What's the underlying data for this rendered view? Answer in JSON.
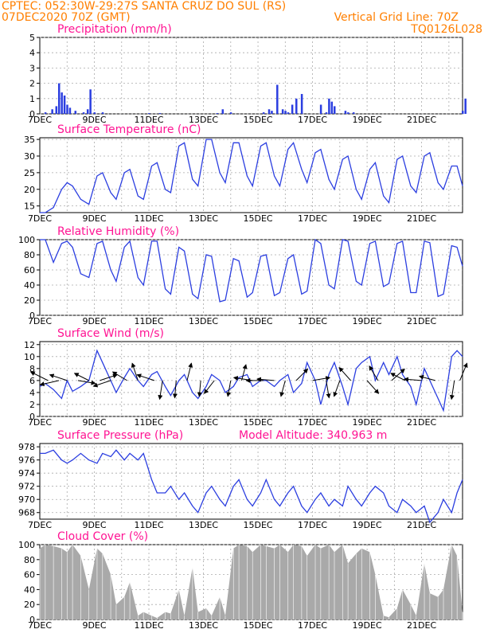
{
  "header": {
    "line1": "CPTEC:   052:30W-29:27S  SANTA CRUZ DO SUL (RS)",
    "line2_left": "07DEC2020 70Z (GMT)",
    "line2_right": "Vertical Grid Line: 70Z",
    "line3_right": "TQ0126L028",
    "model_altitude": "Model Altitude: 340.963 m"
  },
  "colors": {
    "header": "#ff7f00",
    "title": "#ff1493",
    "series": "#2b3ee0",
    "cloud": "#a9a9a9",
    "arrow": "#000000"
  },
  "date_ticks": [
    "7DEC",
    "9DEC",
    "11DEC",
    "13DEC",
    "15DEC",
    "17DEC",
    "19DEC",
    "21DEC"
  ],
  "chart_data": [
    {
      "id": "precip",
      "type": "bar",
      "title": "Precipitation (mm/h)",
      "ylim": [
        0,
        5
      ],
      "yticks": [
        0,
        1,
        2,
        3,
        4,
        5
      ],
      "grid": true,
      "x_unit": "days since 7DEC 00Z",
      "x": [
        0.2,
        0.45,
        0.6,
        0.7,
        0.8,
        0.9,
        1.0,
        1.1,
        1.3,
        1.6,
        1.75,
        1.85,
        2.0,
        2.3,
        4.0,
        4.4,
        6.5,
        6.7,
        7.0,
        8.2,
        8.4,
        8.5,
        8.7,
        8.9,
        9.0,
        9.1,
        9.25,
        9.4,
        9.6,
        10.3,
        10.5,
        10.6,
        10.7,
        10.8,
        11.2,
        11.3,
        11.5,
        15.5,
        15.6
      ],
      "values": [
        0.1,
        0.3,
        0.5,
        2.0,
        1.4,
        1.2,
        0.6,
        0.4,
        0.2,
        0.1,
        0.3,
        1.6,
        0.1,
        0.1,
        0.05,
        0.05,
        0.05,
        0.3,
        0.1,
        0.1,
        0.3,
        0.2,
        1.9,
        0.3,
        0.2,
        0.1,
        0.6,
        1.0,
        1.3,
        0.6,
        0.1,
        1.0,
        0.8,
        0.5,
        0.2,
        0.1,
        0.1,
        0.2,
        1.0
      ]
    },
    {
      "id": "temp",
      "type": "line",
      "title": "Surface Temperature (nC)",
      "ylim": [
        13,
        35.5
      ],
      "yticks": [
        15,
        20,
        25,
        30,
        35
      ],
      "grid": true,
      "x": [
        0,
        0.2,
        0.5,
        0.8,
        1.0,
        1.2,
        1.5,
        1.8,
        2.1,
        2.3,
        2.6,
        2.8,
        3.1,
        3.3,
        3.6,
        3.8,
        4.1,
        4.3,
        4.6,
        4.8,
        5.1,
        5.3,
        5.6,
        5.8,
        6.1,
        6.3,
        6.6,
        6.8,
        7.1,
        7.3,
        7.6,
        7.8,
        8.1,
        8.3,
        8.6,
        8.8,
        9.1,
        9.3,
        9.6,
        9.8,
        10.1,
        10.3,
        10.6,
        10.8,
        11.1,
        11.3,
        11.6,
        11.8,
        12.1,
        12.3,
        12.6,
        12.8,
        13.1,
        13.3,
        13.6,
        13.8,
        14.1,
        14.3,
        14.6,
        14.8,
        15.1,
        15.3,
        15.5
      ],
      "values": [
        13,
        13,
        14.5,
        20,
        22,
        21,
        17,
        15.5,
        24,
        25,
        19,
        17,
        25,
        26,
        18,
        17,
        27,
        28,
        20,
        19,
        33,
        34,
        23,
        21,
        35,
        35,
        25,
        22,
        34,
        34,
        24,
        21,
        33,
        34,
        24,
        21,
        32,
        34,
        26,
        22,
        31,
        32,
        23,
        20,
        29,
        30,
        20,
        17,
        26,
        28,
        18,
        16,
        29,
        30,
        21,
        19,
        30,
        31,
        22,
        20,
        27,
        27,
        21
      ]
    },
    {
      "id": "rh",
      "type": "line",
      "title": "Relative Humidity (%)",
      "ylim": [
        0,
        100
      ],
      "yticks": [
        0,
        20,
        40,
        60,
        80,
        100
      ],
      "grid": true,
      "x": [
        0,
        0.2,
        0.5,
        0.8,
        1.0,
        1.2,
        1.5,
        1.8,
        2.1,
        2.3,
        2.6,
        2.8,
        3.1,
        3.3,
        3.6,
        3.8,
        4.1,
        4.3,
        4.6,
        4.8,
        5.1,
        5.3,
        5.6,
        5.8,
        6.1,
        6.3,
        6.6,
        6.8,
        7.1,
        7.3,
        7.6,
        7.8,
        8.1,
        8.3,
        8.6,
        8.8,
        9.1,
        9.3,
        9.6,
        9.8,
        10.1,
        10.3,
        10.6,
        10.8,
        11.1,
        11.3,
        11.6,
        11.8,
        12.1,
        12.3,
        12.6,
        12.8,
        13.1,
        13.3,
        13.6,
        13.8,
        14.1,
        14.3,
        14.6,
        14.8,
        15.1,
        15.3,
        15.5
      ],
      "values": [
        100,
        100,
        70,
        95,
        98,
        90,
        55,
        50,
        95,
        98,
        60,
        45,
        90,
        98,
        50,
        40,
        98,
        98,
        35,
        28,
        90,
        85,
        28,
        22,
        80,
        78,
        18,
        20,
        75,
        72,
        24,
        30,
        78,
        80,
        26,
        30,
        75,
        80,
        28,
        32,
        100,
        95,
        40,
        35,
        100,
        98,
        45,
        40,
        95,
        98,
        38,
        42,
        95,
        98,
        30,
        30,
        98,
        96,
        25,
        28,
        92,
        90,
        65
      ]
    },
    {
      "id": "wind",
      "type": "line",
      "title": "Surface Wind (m/s)",
      "ylim": [
        0,
        12.5
      ],
      "yticks": [
        0,
        2,
        4,
        6,
        8,
        10,
        12
      ],
      "grid": true,
      "x": [
        0,
        0.2,
        0.5,
        0.8,
        1.0,
        1.2,
        1.5,
        1.8,
        2.1,
        2.3,
        2.6,
        2.8,
        3.1,
        3.3,
        3.6,
        3.8,
        4.1,
        4.3,
        4.6,
        4.8,
        5.1,
        5.3,
        5.6,
        5.8,
        6.1,
        6.3,
        6.6,
        6.8,
        7.1,
        7.3,
        7.6,
        7.8,
        8.1,
        8.3,
        8.6,
        8.8,
        9.1,
        9.3,
        9.6,
        9.8,
        10.1,
        10.3,
        10.6,
        10.8,
        11.1,
        11.3,
        11.6,
        11.8,
        12.1,
        12.3,
        12.6,
        12.8,
        13.1,
        13.3,
        13.6,
        13.8,
        14.1,
        14.3,
        14.6,
        14.8,
        15.1,
        15.3,
        15.5
      ],
      "values": [
        5,
        5.5,
        4.5,
        3,
        6,
        4.2,
        5,
        6,
        11,
        9,
        6,
        4,
        6.5,
        8,
        6,
        5,
        7,
        7.5,
        5,
        3.5,
        6,
        7,
        4,
        3,
        5,
        7,
        6,
        4,
        5,
        6.5,
        7,
        5,
        6,
        6,
        5,
        6,
        7,
        4,
        5.5,
        9,
        6,
        2,
        7,
        9,
        5,
        2,
        8,
        9,
        10,
        6,
        9,
        7,
        10,
        7,
        5,
        2,
        8,
        6,
        3,
        1,
        10,
        11,
        10
      ]
    },
    {
      "id": "pressure",
      "type": "line",
      "title": "Surface Pressure (hPa)",
      "ylim": [
        967,
        978.5
      ],
      "yticks": [
        968,
        970,
        972,
        974,
        976,
        978
      ],
      "grid": true,
      "x": [
        0,
        0.2,
        0.5,
        0.8,
        1.0,
        1.2,
        1.5,
        1.8,
        2.1,
        2.3,
        2.6,
        2.8,
        3.1,
        3.3,
        3.6,
        3.8,
        4.1,
        4.3,
        4.6,
        4.8,
        5.1,
        5.3,
        5.6,
        5.8,
        6.1,
        6.3,
        6.6,
        6.8,
        7.1,
        7.3,
        7.6,
        7.8,
        8.1,
        8.3,
        8.6,
        8.8,
        9.1,
        9.3,
        9.6,
        9.8,
        10.1,
        10.3,
        10.6,
        10.8,
        11.1,
        11.3,
        11.6,
        11.8,
        12.1,
        12.3,
        12.6,
        12.8,
        13.1,
        13.3,
        13.6,
        13.8,
        14.1,
        14.3,
        14.6,
        14.8,
        15.1,
        15.3,
        15.5
      ],
      "values": [
        977,
        977,
        977.5,
        976,
        975.5,
        976,
        977,
        976,
        975.5,
        977,
        976.5,
        977.5,
        976,
        977,
        976,
        977,
        973,
        971,
        971,
        972,
        970,
        971,
        969,
        968,
        971,
        972,
        970,
        969,
        972,
        973,
        970,
        969,
        971,
        973,
        970,
        969,
        971,
        972,
        969,
        968,
        970,
        971,
        969,
        970,
        969,
        972,
        970,
        969,
        971,
        972,
        971,
        969,
        968,
        970,
        969,
        968,
        969,
        966.5,
        968,
        970,
        968,
        971,
        973
      ]
    },
    {
      "id": "cloud",
      "type": "area",
      "title": "Cloud Cover (%)",
      "ylim": [
        0,
        100
      ],
      "yticks": [
        0,
        20,
        40,
        60,
        80,
        100
      ],
      "grid": true,
      "x": [
        0,
        0.2,
        0.5,
        0.8,
        1.0,
        1.2,
        1.5,
        1.8,
        2.1,
        2.3,
        2.6,
        2.8,
        3.1,
        3.3,
        3.6,
        3.8,
        4.1,
        4.3,
        4.6,
        4.8,
        5.1,
        5.3,
        5.6,
        5.8,
        6.1,
        6.3,
        6.6,
        6.8,
        7.1,
        7.3,
        7.6,
        7.8,
        8.1,
        8.3,
        8.6,
        8.8,
        9.1,
        9.3,
        9.6,
        9.8,
        10.1,
        10.3,
        10.6,
        10.8,
        11.1,
        11.3,
        11.6,
        11.8,
        12.1,
        12.3,
        12.6,
        12.8,
        13.1,
        13.3,
        13.6,
        13.8,
        14.1,
        14.3,
        14.6,
        14.8,
        15.1,
        15.3,
        15.5
      ],
      "values": [
        95,
        100,
        98,
        95,
        90,
        100,
        85,
        40,
        95,
        88,
        60,
        20,
        30,
        50,
        5,
        10,
        5,
        2,
        10,
        8,
        40,
        5,
        70,
        10,
        15,
        5,
        30,
        5,
        95,
        100,
        98,
        90,
        100,
        98,
        95,
        100,
        90,
        100,
        98,
        85,
        100,
        95,
        100,
        90,
        100,
        75,
        88,
        95,
        90,
        60,
        5,
        3,
        15,
        40,
        20,
        5,
        75,
        35,
        30,
        40,
        100,
        85,
        10
      ]
    }
  ],
  "wind_vectors": [
    {
      "x": 0.3,
      "u": -1.2,
      "v": 0.6
    },
    {
      "x": 0.7,
      "u": -1.3,
      "v": -0.3
    },
    {
      "x": 1.0,
      "u": -1.2,
      "v": 0.4
    },
    {
      "x": 1.4,
      "u": 1.2,
      "v": -0.2
    },
    {
      "x": 1.8,
      "u": -1.0,
      "v": 0.5
    },
    {
      "x": 2.2,
      "u": 1.2,
      "v": 0.4
    },
    {
      "x": 2.6,
      "u": -1.2,
      "v": -0.4
    },
    {
      "x": 3.2,
      "u": -1.0,
      "v": 0.6
    },
    {
      "x": 3.6,
      "u": -0.4,
      "v": 1.2
    },
    {
      "x": 4.2,
      "u": -1.2,
      "v": 0.4
    },
    {
      "x": 4.5,
      "u": -0.2,
      "v": -1.3
    },
    {
      "x": 5.0,
      "u": -0.1,
      "v": -1.2
    },
    {
      "x": 5.4,
      "u": 0.3,
      "v": 1.2
    },
    {
      "x": 5.9,
      "u": -0.1,
      "v": -1.1
    },
    {
      "x": 6.4,
      "u": -0.7,
      "v": -0.9
    },
    {
      "x": 7.0,
      "u": -0.2,
      "v": -1.1
    },
    {
      "x": 7.4,
      "u": 0.3,
      "v": 1.1
    },
    {
      "x": 7.8,
      "u": -1.3,
      "v": 0.2
    },
    {
      "x": 8.2,
      "u": -1.2,
      "v": 0.0
    },
    {
      "x": 8.6,
      "u": -1.2,
      "v": 0.1
    },
    {
      "x": 9.0,
      "u": -0.3,
      "v": -1.1
    },
    {
      "x": 9.4,
      "u": 0.8,
      "v": 0.8
    },
    {
      "x": 10.0,
      "u": 1.2,
      "v": 0.2
    },
    {
      "x": 10.5,
      "u": 0.2,
      "v": -1.2
    },
    {
      "x": 11.0,
      "u": -0.4,
      "v": -1.1
    },
    {
      "x": 11.4,
      "u": -0.8,
      "v": 0.9
    },
    {
      "x": 12.0,
      "u": 0.8,
      "v": -0.9
    },
    {
      "x": 12.4,
      "u": -0.6,
      "v": 1.0
    },
    {
      "x": 12.9,
      "u": 0.9,
      "v": 0.8
    },
    {
      "x": 13.4,
      "u": -1.0,
      "v": 0.5
    },
    {
      "x": 14.0,
      "u": -1.2,
      "v": 0.1
    },
    {
      "x": 14.5,
      "u": -1.1,
      "v": 0.3
    },
    {
      "x": 15.2,
      "u": -0.2,
      "v": -1.3
    },
    {
      "x": 15.4,
      "u": 0.5,
      "v": 1.2
    }
  ]
}
